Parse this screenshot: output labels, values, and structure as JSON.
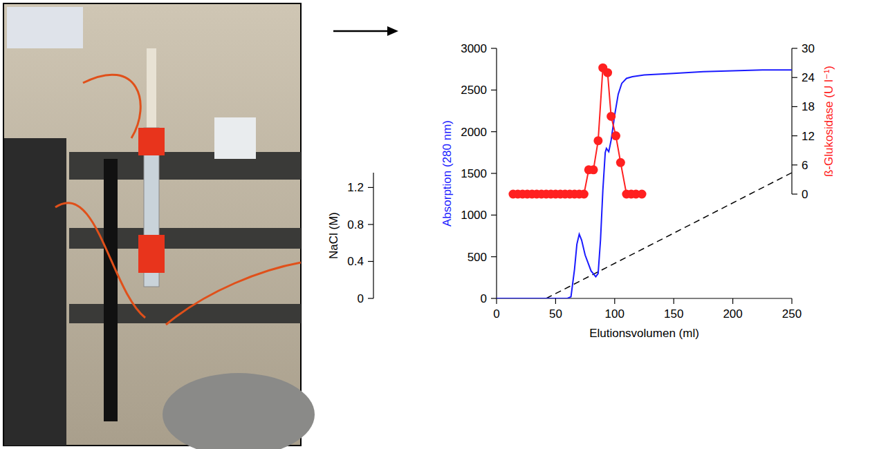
{
  "chart_data": {
    "type": "line",
    "x_label": "Elutionsvolumen (ml)",
    "y_label": "Absorption (280 nm)",
    "y2_label": "ß-Glukosidase (U l⁻¹)",
    "y3_label": "NaCl (M)",
    "xlim": [
      0,
      250
    ],
    "xticks": [
      0,
      50,
      100,
      150,
      200,
      250
    ],
    "ylim": [
      0,
      3000
    ],
    "yticks": [
      0,
      500,
      1000,
      1500,
      2000,
      2500,
      3000
    ],
    "y2lim": [
      0,
      30
    ],
    "y2ticks": [
      0,
      6,
      12,
      18,
      24,
      30
    ],
    "y3lim": [
      0,
      1.36
    ],
    "y3ticks": [
      0,
      0.4,
      0.8,
      1.2
    ],
    "grid": false,
    "series": [
      {
        "name": "Absorption (280 nm)",
        "type": "line",
        "color": "#1a1aff",
        "line_style": "solid",
        "x": [
          0,
          20,
          40,
          60,
          63,
          66,
          68,
          70,
          72,
          75,
          80,
          84,
          86,
          88,
          90,
          92,
          93,
          95,
          97,
          100,
          103,
          106,
          110,
          115,
          125,
          150,
          175,
          200,
          225,
          250
        ],
        "values": [
          0,
          0,
          0,
          0,
          20,
          350,
          650,
          770,
          700,
          520,
          330,
          260,
          300,
          700,
          1300,
          1750,
          1800,
          1760,
          1900,
          2200,
          2450,
          2580,
          2640,
          2660,
          2680,
          2700,
          2720,
          2730,
          2740,
          2740
        ]
      },
      {
        "name": "ß-Glukosidase (U l⁻¹)",
        "type": "line",
        "axis": "y2",
        "color": "#ff2020",
        "marker": "circle",
        "line_style": "solid",
        "x": [
          14,
          18,
          22,
          26,
          30,
          34,
          38,
          42,
          46,
          50,
          54,
          58,
          62,
          66,
          70,
          74,
          78,
          82,
          86,
          90,
          94,
          97,
          101,
          105,
          110,
          114,
          118,
          123
        ],
        "values": [
          0,
          0,
          0,
          0,
          0,
          0,
          0,
          0,
          0,
          0,
          0,
          0,
          0,
          0,
          0,
          0,
          5,
          5,
          11,
          26,
          25,
          16,
          12,
          6.5,
          0,
          0,
          0,
          0
        ]
      },
      {
        "name": "NaCl (M)",
        "type": "line",
        "axis": "y3",
        "color": "#000000",
        "line_style": "dashed",
        "x": [
          42,
          250
        ],
        "values": [
          0,
          1.36
        ]
      }
    ]
  }
}
